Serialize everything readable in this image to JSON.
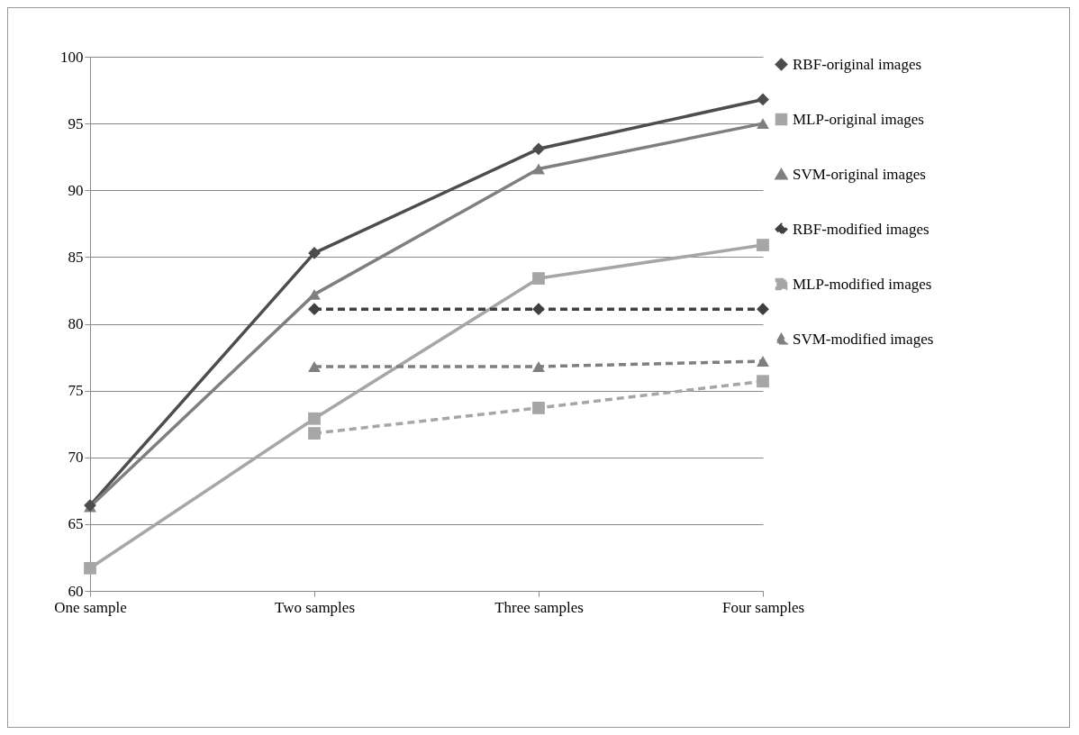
{
  "chart_data": {
    "type": "line",
    "categories": [
      "One sample",
      "Two samples",
      "Three samples",
      "Four samples"
    ],
    "series": [
      {
        "name": "RBF-original images",
        "color": "#4d4d4d",
        "marker": "diamond",
        "line_style": "solid",
        "values": [
          66.4,
          85.3,
          93.1,
          96.8
        ]
      },
      {
        "name": "MLP-original images",
        "color": "#a6a6a6",
        "marker": "square",
        "line_style": "solid",
        "values": [
          61.7,
          72.9,
          83.4,
          85.9
        ]
      },
      {
        "name": "SVM-original images",
        "color": "#7f7f7f",
        "marker": "triangle",
        "line_style": "solid",
        "values": [
          66.3,
          82.2,
          91.6,
          95.0
        ]
      },
      {
        "name": "RBF-modified images",
        "color": "#404040",
        "marker": "diamond",
        "line_style": "dashed",
        "values": [
          null,
          81.1,
          81.1,
          81.1
        ]
      },
      {
        "name": "MLP-modified images",
        "color": "#a6a6a6",
        "marker": "square",
        "line_style": "dashed",
        "values": [
          null,
          71.8,
          73.7,
          75.7
        ]
      },
      {
        "name": "SVM-modified images",
        "color": "#7f7f7f",
        "marker": "triangle",
        "line_style": "dashed",
        "values": [
          null,
          76.8,
          76.8,
          77.2
        ]
      }
    ],
    "ylim": [
      60,
      100
    ],
    "yticks": [
      60,
      65,
      70,
      75,
      80,
      85,
      90,
      95,
      100
    ],
    "grid": "y",
    "legend": "right"
  }
}
